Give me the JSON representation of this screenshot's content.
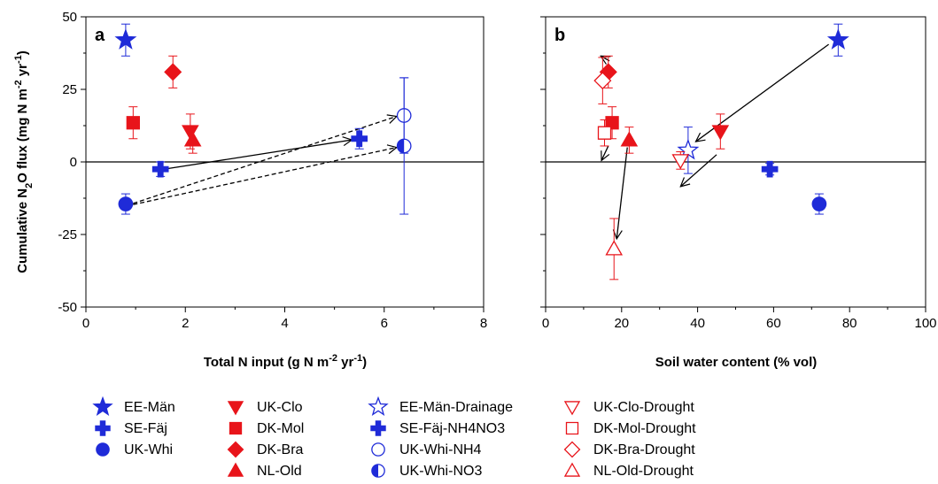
{
  "colors": {
    "blue": "#1f2bd8",
    "red": "#e8141a"
  },
  "chart_data": [
    {
      "panel": "a",
      "type": "scatter",
      "xlabel": "Total N input (g N m",
      "xlabel_sup": "-2",
      "xlabel_end": " yr",
      "xlabel_sup2": "-1",
      "xlabel_close": ")",
      "ylabel_pre": "Cumulative N",
      "ylabel_sub": "2",
      "ylabel_mid": "O flux (mg N m",
      "ylabel_sup": "-2",
      "ylabel_mid2": " yr",
      "ylabel_sup2": "-1",
      "ylabel_close": ")",
      "xlim": [
        0,
        8
      ],
      "ylim": [
        -50,
        50
      ],
      "xticks": [
        "0",
        "2",
        "4",
        "6",
        "8"
      ],
      "yticks": [
        "-50",
        "-25",
        "0",
        "25",
        "50"
      ],
      "points": [
        {
          "name": "EE-Män",
          "x": 0.8,
          "y": 42,
          "err": 5.5,
          "marker": "star",
          "color": "blue",
          "fill": "filled"
        },
        {
          "name": "SE-Fäj",
          "x": 1.5,
          "y": -2.5,
          "err": 2.5,
          "marker": "cross",
          "color": "blue",
          "fill": "filled"
        },
        {
          "name": "UK-Whi",
          "x": 0.8,
          "y": -14.5,
          "err": 3.5,
          "marker": "circle",
          "color": "blue",
          "fill": "filled"
        },
        {
          "name": "UK-Clo",
          "x": 2.1,
          "y": 10.5,
          "err": 6,
          "marker": "triangle-down",
          "color": "red",
          "fill": "filled"
        },
        {
          "name": "DK-Mol",
          "x": 0.95,
          "y": 13.5,
          "err": 5.5,
          "marker": "square",
          "color": "red",
          "fill": "filled"
        },
        {
          "name": "DK-Bra",
          "x": 1.75,
          "y": 31,
          "err": 5.5,
          "marker": "diamond",
          "color": "red",
          "fill": "filled"
        },
        {
          "name": "NL-Old",
          "x": 2.15,
          "y": 7.5,
          "err": 4.5,
          "marker": "triangle-up",
          "color": "red",
          "fill": "filled"
        },
        {
          "name": "SE-Fäj-NH4NO3",
          "x": 5.5,
          "y": 8,
          "err": 3.5,
          "marker": "cross",
          "color": "blue",
          "fill": "filled"
        },
        {
          "name": "UK-Whi-NH4",
          "x": 6.4,
          "y": 16,
          "err": 13,
          "marker": "circle",
          "color": "blue",
          "fill": "open"
        },
        {
          "name": "UK-Whi-NO3",
          "x": 6.4,
          "y": 5.5,
          "err": 23.5,
          "marker": "circle",
          "color": "blue",
          "fill": "half"
        }
      ],
      "arrows": [
        {
          "from": [
            1.65,
            -2.3
          ],
          "to": [
            5.35,
            7.6
          ],
          "style": "solid"
        },
        {
          "from": [
            0.95,
            -14.3
          ],
          "to": [
            6.25,
            15.7
          ],
          "style": "dashed"
        },
        {
          "from": [
            0.95,
            -14.7
          ],
          "to": [
            6.25,
            5.0
          ],
          "style": "dashed"
        }
      ]
    },
    {
      "panel": "b",
      "type": "scatter",
      "xlabel": "Soil water content (% vol)",
      "xlim": [
        0,
        100
      ],
      "ylim": [
        -50,
        50
      ],
      "xticks": [
        "0",
        "20",
        "40",
        "60",
        "80",
        "100"
      ],
      "points": [
        {
          "name": "EE-Män",
          "x": 77,
          "y": 42,
          "err": 5.5,
          "marker": "star",
          "color": "blue",
          "fill": "filled"
        },
        {
          "name": "SE-Fäj",
          "x": 59,
          "y": -2.5,
          "err": 2,
          "marker": "cross",
          "color": "blue",
          "fill": "filled"
        },
        {
          "name": "UK-Whi",
          "x": 72,
          "y": -14.5,
          "err": 3.5,
          "marker": "circle",
          "color": "blue",
          "fill": "filled"
        },
        {
          "name": "UK-Clo",
          "x": 46,
          "y": 10.5,
          "err": 6,
          "marker": "triangle-down",
          "color": "red",
          "fill": "filled"
        },
        {
          "name": "DK-Mol",
          "x": 17.5,
          "y": 13.5,
          "err": 5.5,
          "marker": "square",
          "color": "red",
          "fill": "filled"
        },
        {
          "name": "DK-Bra",
          "x": 16.5,
          "y": 31,
          "err": 5.5,
          "marker": "diamond",
          "color": "red",
          "fill": "filled"
        },
        {
          "name": "NL-Old",
          "x": 22,
          "y": 7.5,
          "err": 4.5,
          "marker": "triangle-up",
          "color": "red",
          "fill": "filled"
        },
        {
          "name": "EE-Män-Drainage",
          "x": 37.5,
          "y": 4,
          "err": 8,
          "marker": "star",
          "color": "blue",
          "fill": "open"
        },
        {
          "name": "UK-Clo-Drought",
          "x": 35.5,
          "y": 0.5,
          "err": 3,
          "marker": "triangle-down",
          "color": "red",
          "fill": "open"
        },
        {
          "name": "DK-Mol-Drought",
          "x": 15.5,
          "y": 10,
          "err": 4.5,
          "marker": "square",
          "color": "red",
          "fill": "open"
        },
        {
          "name": "DK-Bra-Drought",
          "x": 15,
          "y": 28,
          "err": 8,
          "marker": "diamond",
          "color": "red",
          "fill": "open"
        },
        {
          "name": "NL-Old-Drought",
          "x": 18,
          "y": -30,
          "err": 10.5,
          "marker": "triangle-up",
          "color": "red",
          "fill": "open"
        }
      ],
      "arrows": [
        {
          "from": [
            74.5,
            40.5
          ],
          "to": [
            39.5,
            7
          ],
          "style": "solid"
        },
        {
          "from": [
            21.5,
            5
          ],
          "to": [
            18.7,
            -26.5
          ],
          "style": "solid"
        },
        {
          "from": [
            45,
            2.5
          ],
          "to": [
            35.5,
            -8.5
          ],
          "style": "solid"
        },
        {
          "from": [
            16.8,
            34.8
          ],
          "to": [
            14.5,
            36.5
          ],
          "style": "solid"
        },
        {
          "from": [
            16.5,
            5.5
          ],
          "to": [
            14.7,
            0.5
          ],
          "style": "solid"
        }
      ]
    }
  ],
  "legend": [
    {
      "label": "EE-Män",
      "marker": "star",
      "color": "blue",
      "fill": "filled"
    },
    {
      "label": "SE-Fäj",
      "marker": "cross",
      "color": "blue",
      "fill": "filled"
    },
    {
      "label": "UK-Whi",
      "marker": "circle",
      "color": "blue",
      "fill": "filled"
    },
    {
      "label": "UK-Clo",
      "marker": "triangle-down",
      "color": "red",
      "fill": "filled"
    },
    {
      "label": "DK-Mol",
      "marker": "square",
      "color": "red",
      "fill": "filled"
    },
    {
      "label": "DK-Bra",
      "marker": "diamond",
      "color": "red",
      "fill": "filled"
    },
    {
      "label": "NL-Old",
      "marker": "triangle-up",
      "color": "red",
      "fill": "filled"
    },
    {
      "label": "EE-Män-Drainage",
      "marker": "star",
      "color": "blue",
      "fill": "open"
    },
    {
      "label": "SE-Fäj-NH4NO3",
      "marker": "cross",
      "color": "blue",
      "fill": "filled"
    },
    {
      "label": "UK-Whi-NH4",
      "marker": "circle",
      "color": "blue",
      "fill": "open"
    },
    {
      "label": "UK-Whi-NO3",
      "marker": "circle",
      "color": "blue",
      "fill": "half"
    },
    {
      "label": "UK-Clo-Drought",
      "marker": "triangle-down",
      "color": "red",
      "fill": "open"
    },
    {
      "label": "DK-Mol-Drought",
      "marker": "square",
      "color": "red",
      "fill": "open"
    },
    {
      "label": "DK-Bra-Drought",
      "marker": "diamond",
      "color": "red",
      "fill": "open"
    },
    {
      "label": "NL-Old-Drought",
      "marker": "triangle-up",
      "color": "red",
      "fill": "open"
    }
  ]
}
